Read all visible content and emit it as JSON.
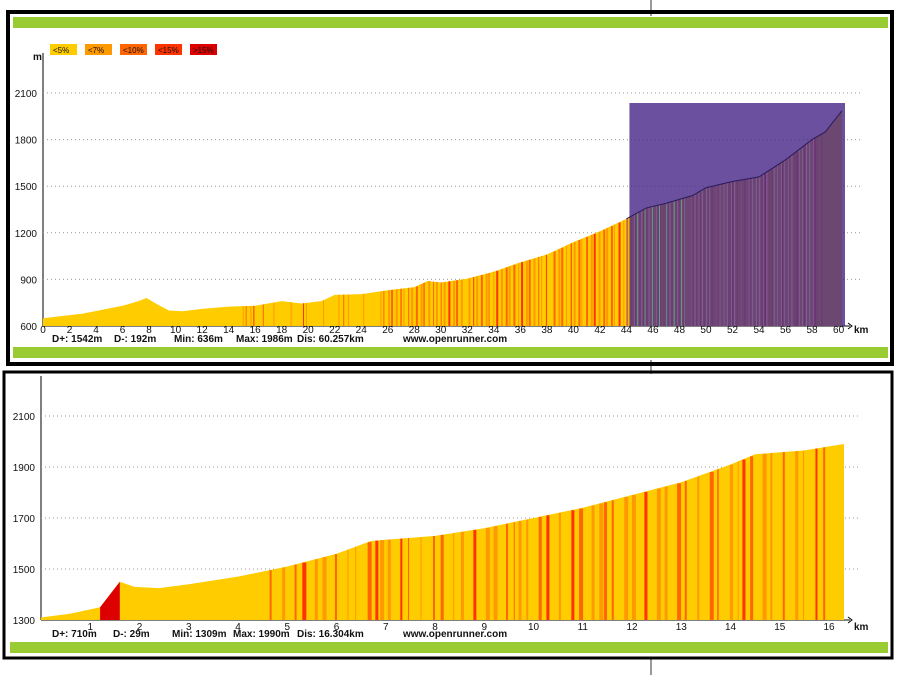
{
  "colors": {
    "lt5": "#ffcc00",
    "lt7": "#ff9900",
    "lt10": "#ff6600",
    "lt15": "#ff3300",
    "gt15": "#dd0000",
    "green": "#99cc33",
    "overlay": "#4a2a8a",
    "grid": "#999999",
    "frame": "#000000"
  },
  "legend": [
    "<5%",
    "<7%",
    "<10%",
    "<15%",
    ">15%"
  ],
  "chart_data": [
    {
      "type": "area",
      "ylabel": "m",
      "xlabel": "km",
      "xlim": [
        0,
        60.257
      ],
      "ylim": [
        600,
        2100
      ],
      "yticks": [
        600,
        900,
        1200,
        1500,
        1800,
        2100
      ],
      "xticks": [
        0,
        2,
        4,
        6,
        8,
        10,
        12,
        14,
        16,
        18,
        20,
        22,
        24,
        26,
        28,
        30,
        32,
        34,
        36,
        38,
        40,
        42,
        44,
        46,
        48,
        50,
        52,
        54,
        56,
        58,
        60
      ],
      "grid": true,
      "profile": [
        [
          0,
          650
        ],
        [
          3,
          680
        ],
        [
          6,
          730
        ],
        [
          7.2,
          760
        ],
        [
          7.8,
          780
        ],
        [
          8.6,
          740
        ],
        [
          9.5,
          700
        ],
        [
          10.5,
          695
        ],
        [
          12,
          710
        ],
        [
          14,
          725
        ],
        [
          16,
          730
        ],
        [
          18,
          760
        ],
        [
          19.5,
          745
        ],
        [
          21,
          760
        ],
        [
          22,
          800
        ],
        [
          24,
          805
        ],
        [
          26,
          830
        ],
        [
          28,
          850
        ],
        [
          29,
          890
        ],
        [
          30,
          880
        ],
        [
          32,
          905
        ],
        [
          34,
          950
        ],
        [
          36,
          1010
        ],
        [
          38,
          1060
        ],
        [
          40,
          1140
        ],
        [
          42,
          1210
        ],
        [
          44,
          1290
        ],
        [
          45.5,
          1360
        ],
        [
          47,
          1390
        ],
        [
          49,
          1440
        ],
        [
          50,
          1490
        ],
        [
          52,
          1530
        ],
        [
          54,
          1560
        ],
        [
          56,
          1670
        ],
        [
          58,
          1800
        ],
        [
          59,
          1850
        ],
        [
          60.257,
          1986
        ]
      ],
      "overlay_range": [
        44,
        60.257
      ],
      "stats": {
        "dplus": "D+: 1542m",
        "dminus": "D-: 192m",
        "min": "Min: 636m",
        "max": "Max: 1986m",
        "dist": "Dis: 60.257km",
        "site": "www.openrunner.com"
      }
    },
    {
      "type": "area",
      "xlabel": "km",
      "xlim": [
        0,
        16.304
      ],
      "ylim": [
        1300,
        2100
      ],
      "yticks": [
        1300,
        1500,
        1700,
        1900,
        2100
      ],
      "xticks": [
        1,
        2,
        3,
        4,
        5,
        6,
        7,
        8,
        9,
        10,
        11,
        12,
        13,
        14,
        15,
        16
      ],
      "grid": true,
      "profile": [
        [
          0,
          1310
        ],
        [
          0.6,
          1325
        ],
        [
          1.2,
          1350
        ],
        [
          1.6,
          1450
        ],
        [
          1.9,
          1430
        ],
        [
          2.4,
          1425
        ],
        [
          3,
          1440
        ],
        [
          4,
          1470
        ],
        [
          5,
          1510
        ],
        [
          6,
          1560
        ],
        [
          6.7,
          1610
        ],
        [
          8,
          1630
        ],
        [
          9,
          1660
        ],
        [
          10,
          1700
        ],
        [
          11,
          1740
        ],
        [
          12,
          1790
        ],
        [
          13,
          1840
        ],
        [
          14,
          1910
        ],
        [
          14.5,
          1950
        ],
        [
          15.5,
          1965
        ],
        [
          16.304,
          1990
        ]
      ],
      "steep_segment": [
        1.2,
        1.6
      ],
      "stats": {
        "dplus": "D+: 710m",
        "dminus": "D-: 29m",
        "min": "Min: 1309m",
        "max": "Max: 1990m",
        "dist": "Dis: 16.304km",
        "site": "www.openrunner.com"
      }
    }
  ]
}
